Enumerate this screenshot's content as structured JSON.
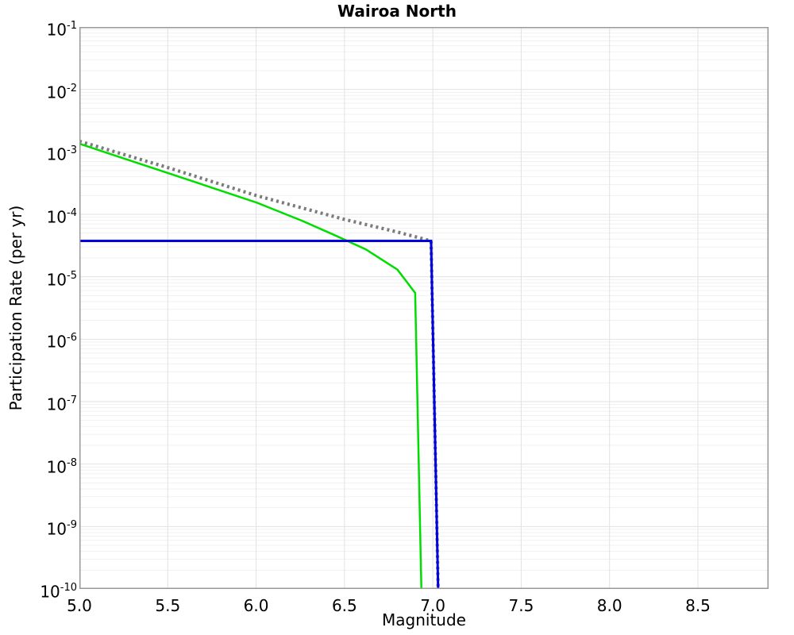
{
  "chart_data": {
    "type": "line",
    "title": "Wairoa North",
    "xlabel": "Magnitude",
    "ylabel": "Participation Rate (per yr)",
    "background_color": "#ffffff",
    "x_range": [
      5.0,
      8.9
    ],
    "y_scale": "log",
    "y_range_exponents": [
      -1,
      -10
    ],
    "grid": {
      "major_color": "#e2e2e2",
      "minor_color": "#f1f1f1",
      "frame_color": "#999999",
      "minor_log_steps": [
        2,
        3,
        4,
        5,
        6,
        7,
        8,
        9
      ],
      "vertical_major_step": 0.5
    },
    "legend": "none",
    "x_ticks": [
      {
        "value": 5.0,
        "label": "5.0"
      },
      {
        "value": 5.5,
        "label": "5.5"
      },
      {
        "value": 6.0,
        "label": "6.0"
      },
      {
        "value": 6.5,
        "label": "6.5"
      },
      {
        "value": 7.0,
        "label": "7.0"
      },
      {
        "value": 7.5,
        "label": "7.5"
      },
      {
        "value": 8.0,
        "label": "8.0"
      },
      {
        "value": 8.5,
        "label": "8.5"
      }
    ],
    "y_ticks": [
      {
        "base": "10",
        "exp": "-1"
      },
      {
        "base": "10",
        "exp": "-2"
      },
      {
        "base": "10",
        "exp": "-3"
      },
      {
        "base": "10",
        "exp": "-4"
      },
      {
        "base": "10",
        "exp": "-5"
      },
      {
        "base": "10",
        "exp": "-6"
      },
      {
        "base": "10",
        "exp": "-7"
      },
      {
        "base": "10",
        "exp": "-8"
      },
      {
        "base": "10",
        "exp": "-9"
      },
      {
        "base": "10",
        "exp": "-10"
      }
    ],
    "series": [
      {
        "name": "dotted-gray-curve",
        "color": "#7b7b7b",
        "style": "dotted",
        "stroke_width": 4.2,
        "dash": "3 4.2",
        "points": [
          [
            5.0,
            0.00148
          ],
          [
            5.5,
            0.00056
          ],
          [
            6.0,
            0.0002
          ],
          [
            6.5,
            8.3e-05
          ],
          [
            6.8,
            5.2e-05
          ],
          [
            6.99,
            3.75e-05
          ],
          [
            7.03,
            1e-10
          ]
        ]
      },
      {
        "name": "solid-green-curve",
        "color": "#00dd00",
        "style": "solid",
        "stroke_width": 2.5,
        "dash": "",
        "points": [
          [
            5.0,
            0.00135
          ],
          [
            5.5,
            0.00046
          ],
          [
            6.0,
            0.000155
          ],
          [
            6.26,
            7.9e-05
          ],
          [
            6.44,
            4.7e-05
          ],
          [
            6.62,
            2.75e-05
          ],
          [
            6.8,
            1.3e-05
          ],
          [
            6.9,
            5.5e-06
          ],
          [
            6.935,
            1e-10
          ]
        ]
      },
      {
        "name": "solid-blue-curve",
        "color": "#0000e0",
        "style": "solid",
        "stroke_width": 3,
        "dash": "",
        "points": [
          [
            5.0,
            3.75e-05
          ],
          [
            6.99,
            3.75e-05
          ],
          [
            7.03,
            1e-10
          ]
        ]
      }
    ]
  }
}
